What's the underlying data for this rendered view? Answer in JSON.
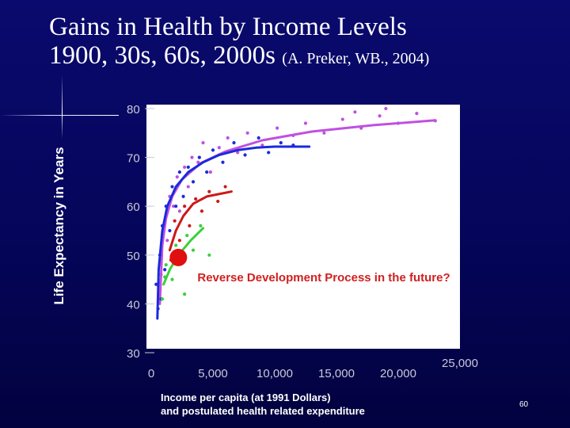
{
  "slide": {
    "title_line1": "Gains in Health by Income Levels",
    "title_line2_main": "1900, 30s, 60s, 2000s ",
    "title_line2_source": "(A. Preker, WB., 2004)",
    "page_number": "60"
  },
  "chart_data": {
    "type": "scatter",
    "ylabel": "Life Expectancy in Years",
    "xlabel_line1": "Income per capita (at 1991 Dollars)",
    "xlabel_line2": "and postulated health related expenditure",
    "xlim": [
      0,
      25000
    ],
    "ylim": [
      30,
      80
    ],
    "y_ticks": [
      80,
      70,
      60,
      50,
      40,
      30
    ],
    "x_ticks": [
      "0",
      "5,000",
      "10,000",
      "15,000",
      "20,000",
      "25,000"
    ],
    "grid": false,
    "annotation": "Reverse Development Process in the future?",
    "highlight_point": {
      "x": 2200,
      "y": 49.5,
      "color": "#e01010"
    },
    "series": [
      {
        "color": "#c050e0",
        "curve": [
          [
            700,
            40
          ],
          [
            900,
            52
          ],
          [
            1200,
            57.5
          ],
          [
            1700,
            62
          ],
          [
            2500,
            65.5
          ],
          [
            4000,
            68.8
          ],
          [
            6000,
            71.2
          ],
          [
            9000,
            73.5
          ],
          [
            13000,
            75.3
          ],
          [
            18000,
            76.6
          ],
          [
            23000,
            77.6
          ]
        ],
        "points": [
          [
            800,
            46
          ],
          [
            1000,
            55
          ],
          [
            1300,
            53
          ],
          [
            1500,
            62
          ],
          [
            1800,
            60
          ],
          [
            2100,
            66
          ],
          [
            2300,
            59
          ],
          [
            2700,
            68
          ],
          [
            3000,
            64
          ],
          [
            3300,
            70
          ],
          [
            3800,
            69
          ],
          [
            4200,
            73
          ],
          [
            4800,
            67
          ],
          [
            5500,
            72
          ],
          [
            6200,
            74
          ],
          [
            7000,
            71
          ],
          [
            7800,
            75
          ],
          [
            9000,
            72.5
          ],
          [
            10200,
            76
          ],
          [
            11500,
            74.5
          ],
          [
            12500,
            77
          ],
          [
            14000,
            75
          ],
          [
            15500,
            77.8
          ],
          [
            17000,
            76
          ],
          [
            18500,
            78.5
          ],
          [
            20000,
            77
          ],
          [
            21500,
            79
          ],
          [
            23000,
            77.5
          ],
          [
            19000,
            80
          ],
          [
            16500,
            79.3
          ]
        ]
      },
      {
        "color": "#1a2adc",
        "curve": [
          [
            500,
            37
          ],
          [
            600,
            47
          ],
          [
            900,
            55
          ],
          [
            1300,
            60
          ],
          [
            2000,
            64
          ],
          [
            3000,
            67
          ],
          [
            4200,
            69
          ],
          [
            5500,
            70.5
          ],
          [
            7000,
            71.5
          ],
          [
            8500,
            72
          ],
          [
            10000,
            72.2
          ],
          [
            12800,
            72.2
          ]
        ],
        "points": [
          [
            400,
            44
          ],
          [
            550,
            39
          ],
          [
            700,
            50
          ],
          [
            800,
            41
          ],
          [
            900,
            56
          ],
          [
            1100,
            47
          ],
          [
            1200,
            60
          ],
          [
            1500,
            55
          ],
          [
            1700,
            64
          ],
          [
            2000,
            60
          ],
          [
            2300,
            67
          ],
          [
            2600,
            62
          ],
          [
            3000,
            68
          ],
          [
            3400,
            65
          ],
          [
            3900,
            70
          ],
          [
            4500,
            67
          ],
          [
            5000,
            71.5
          ],
          [
            5800,
            69
          ],
          [
            6700,
            73
          ],
          [
            7600,
            70.5
          ],
          [
            8700,
            74
          ],
          [
            9500,
            71
          ],
          [
            10500,
            73
          ],
          [
            11500,
            72.5
          ]
        ]
      },
      {
        "color": "#cc1818",
        "curve": [
          [
            1500,
            51
          ],
          [
            2000,
            55
          ],
          [
            2600,
            58
          ],
          [
            3400,
            60.5
          ],
          [
            4500,
            62
          ],
          [
            6500,
            63
          ]
        ],
        "points": [
          [
            1600,
            49
          ],
          [
            1900,
            57
          ],
          [
            2300,
            53
          ],
          [
            2700,
            60
          ],
          [
            3100,
            56
          ],
          [
            3600,
            61.5
          ],
          [
            4100,
            59
          ],
          [
            4700,
            63
          ],
          [
            5400,
            61
          ],
          [
            6000,
            64
          ]
        ]
      },
      {
        "color": "#3ccf3c",
        "curve": [
          [
            1000,
            44
          ],
          [
            1500,
            47
          ],
          [
            2200,
            50
          ],
          [
            3200,
            53
          ],
          [
            4200,
            55.5
          ]
        ],
        "points": [
          [
            900,
            41
          ],
          [
            1200,
            48
          ],
          [
            1700,
            45
          ],
          [
            2000,
            52
          ],
          [
            2500,
            49
          ],
          [
            2900,
            54
          ],
          [
            3400,
            51
          ],
          [
            4000,
            56
          ],
          [
            2700,
            42
          ],
          [
            1100,
            45.5
          ],
          [
            4700,
            50
          ]
        ]
      }
    ]
  }
}
